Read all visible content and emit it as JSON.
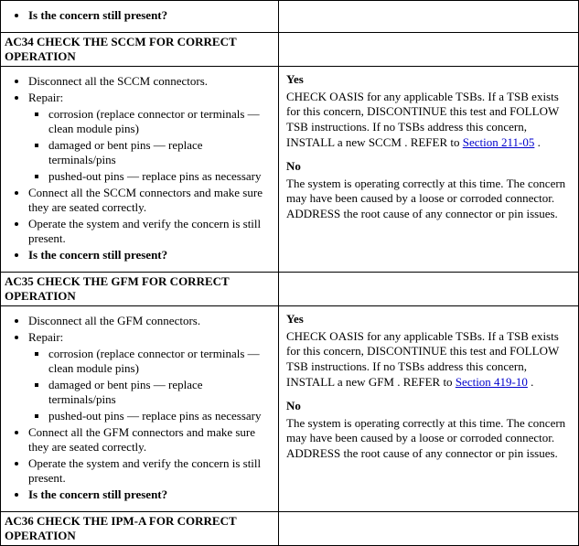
{
  "top_fragment": {
    "question": "Is the concern still present?"
  },
  "steps": [
    {
      "code": "AC34",
      "title": "AC34 CHECK THE SCCM FOR CORRECT OPERATION",
      "module": "SCCM",
      "section_link": "Section 211-05",
      "instr": {
        "disconnect": "Disconnect all the SCCM connectors.",
        "repair_label": "Repair:",
        "repairs": [
          "corrosion (replace connector or terminals — clean module pins)",
          "damaged or bent pins — replace terminals/pins",
          "pushed-out pins — replace pins as necessary"
        ],
        "connect": "Connect all the SCCM connectors and make sure they are seated correctly.",
        "operate": "Operate the system and verify the concern is still present.",
        "question": "Is the concern still present?"
      },
      "result": {
        "yes_label": "Yes",
        "yes_text_1": "CHECK OASIS for any applicable TSBs. If a TSB exists for this concern, DISCONTINUE this test and FOLLOW TSB instructions. If no TSBs address this concern, INSTALL a new SCCM . REFER to ",
        "yes_text_2": " .",
        "no_label": "No",
        "no_text": "The system is operating correctly at this time. The concern may have been caused by a loose or corroded connector. ADDRESS the root cause of any connector or pin issues."
      }
    },
    {
      "code": "AC35",
      "title": "AC35 CHECK THE GFM FOR CORRECT OPERATION",
      "module": "GFM",
      "section_link": "Section 419-10",
      "instr": {
        "disconnect": "Disconnect all the GFM connectors.",
        "repair_label": "Repair:",
        "repairs": [
          "corrosion (replace connector or terminals — clean module pins)",
          "damaged or bent pins — replace terminals/pins",
          "pushed-out pins — replace pins as necessary"
        ],
        "connect": "Connect all the GFM connectors and make sure they are seated correctly.",
        "operate": "Operate the system and verify the concern is still present.",
        "question": "Is the concern still present?"
      },
      "result": {
        "yes_label": "Yes",
        "yes_text_1": "CHECK OASIS for any applicable TSBs. If a TSB exists for this concern, DISCONTINUE this test and FOLLOW TSB instructions. If no TSBs address this concern, INSTALL a new GFM . REFER to ",
        "yes_text_2": " .",
        "no_label": "No",
        "no_text": "The system is operating correctly at this time. The concern may have been caused by a loose or corroded connector. ADDRESS the root cause of any connector or pin issues."
      }
    },
    {
      "code": "AC36",
      "title": "AC36 CHECK THE IPM-A FOR CORRECT OPERATION",
      "module": "IPM-A"
    }
  ]
}
